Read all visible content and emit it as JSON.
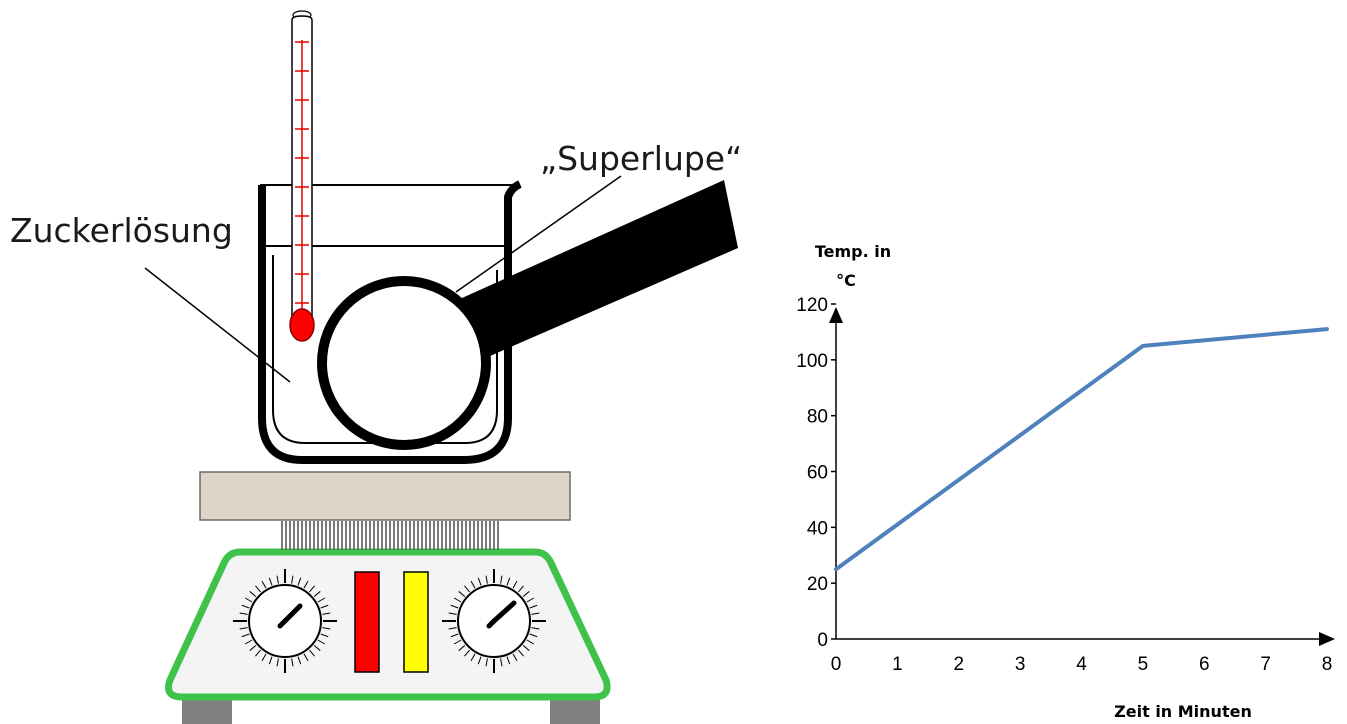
{
  "labels": {
    "solution": "Zuckerlösung",
    "magnifier": "„Superlupe“"
  },
  "colors": {
    "plate_top": "#ddd5c5",
    "stirrer_frame": "#3fc24a",
    "indicator_red": "#ff0000",
    "indicator_yellow": "#ffff00",
    "thermometer_fluid": "#e60000",
    "line": "#4f81bd"
  },
  "chart_data": {
    "type": "line",
    "title": "",
    "xlabel": "Zeit in Minuten",
    "ylabel_line1": "Temp. in",
    "ylabel_line2": "°C",
    "xlim": [
      0,
      8
    ],
    "ylim": [
      0,
      120
    ],
    "xticks": [
      0,
      1,
      2,
      3,
      4,
      5,
      6,
      7,
      8
    ],
    "yticks": [
      0,
      20,
      40,
      60,
      80,
      100,
      120
    ],
    "series": [
      {
        "x": [
          0,
          5,
          8
        ],
        "y": [
          25,
          105,
          111
        ]
      }
    ],
    "grid": false,
    "legend": "none"
  }
}
